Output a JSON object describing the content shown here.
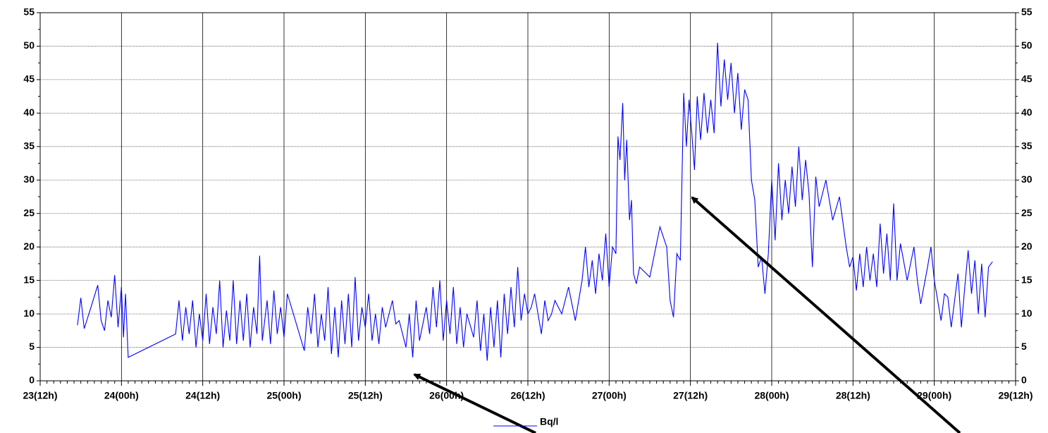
{
  "chart_data": {
    "type": "line",
    "x": [
      5.5,
      6,
      6.5,
      7.5,
      8.5,
      9,
      9.5,
      10,
      10.5,
      11,
      11.5,
      12,
      12.3,
      12.6,
      13,
      20,
      20.5,
      21,
      21.5,
      22,
      22.5,
      23,
      23.5,
      24,
      24.5,
      25,
      25.5,
      26,
      26.5,
      27,
      27.5,
      28,
      28.5,
      29,
      29.5,
      30,
      30.5,
      31,
      31.5,
      32,
      32.4,
      32.8,
      33.5,
      34,
      34.5,
      35,
      35.5,
      36,
      36.5,
      39,
      39.5,
      40,
      40.5,
      41,
      41.5,
      42,
      42.5,
      43,
      43.5,
      44,
      44.5,
      45,
      45.5,
      46,
      46.5,
      47,
      47.5,
      48,
      48.5,
      49,
      49.5,
      50,
      50.5,
      51,
      52,
      52.5,
      53,
      54,
      54.5,
      55,
      55.5,
      56,
      57,
      57.5,
      58,
      58.5,
      59,
      59.5,
      60,
      60.5,
      61,
      61.5,
      62,
      62.5,
      63,
      64,
      64.5,
      65,
      65.5,
      66,
      66.5,
      67,
      67.5,
      68,
      68.5,
      69,
      69.5,
      70,
      70.5,
      71,
      71.5,
      72,
      72.5,
      73,
      74,
      74.5,
      75,
      75.5,
      76,
      77,
      78,
      79,
      79.5,
      80,
      80.5,
      81,
      81.5,
      82,
      82.5,
      83,
      83.5,
      84,
      84.5,
      85,
      85.3,
      85.6,
      86,
      86.3,
      86.6,
      87,
      87.3,
      87.6,
      88,
      88.5,
      90,
      91.5,
      92.5,
      93,
      93.5,
      94,
      94.5,
      95,
      95.4,
      95.8,
      96.2,
      96.6,
      97,
      97.5,
      98,
      98.5,
      99,
      99.5,
      100,
      100.5,
      101,
      101.5,
      102,
      102.5,
      103,
      103.5,
      104,
      104.5,
      105,
      105.5,
      106,
      106.5,
      107,
      107.5,
      108,
      108.5,
      109,
      109.5,
      110,
      110.5,
      111,
      111.5,
      112,
      112.5,
      113,
      113.5,
      114,
      114.5,
      115,
      116,
      117,
      118,
      119,
      119.5,
      120,
      120.5,
      121,
      121.5,
      122,
      122.5,
      123,
      123.5,
      124,
      124.5,
      125,
      125.5,
      126,
      126.5,
      127,
      128,
      129,
      129.5,
      130,
      131,
      131.5,
      132,
      132.5,
      133,
      133.5,
      134,
      134.5,
      135,
      135.5,
      136,
      136.5,
      137,
      137.5,
      138,
      138.5,
      139,
      139.5,
      140,
      140.6
    ],
    "series": [
      {
        "name": "Bq/l",
        "color": "#0000ff",
        "values": [
          8.3,
          12.4,
          7.8,
          11,
          14.3,
          9,
          7.5,
          12,
          9.5,
          15.8,
          8,
          14,
          6.5,
          13,
          3.5,
          7,
          12,
          6,
          11,
          7,
          12,
          5,
          10,
          6,
          13,
          5.5,
          11,
          7,
          15,
          5,
          10.5,
          6,
          15,
          5.5,
          12,
          6,
          13,
          5,
          11,
          7,
          18.7,
          6,
          12,
          5.5,
          13.5,
          7,
          11,
          6.5,
          13,
          4.5,
          11,
          7,
          13,
          5,
          10,
          6,
          14,
          4,
          11,
          3.5,
          12,
          5.5,
          13,
          5,
          15.5,
          6,
          11,
          8,
          13,
          6,
          10,
          5.5,
          11,
          8,
          12,
          8.5,
          9,
          5,
          10,
          3.5,
          12,
          6,
          11,
          7,
          14,
          8,
          15,
          6,
          12,
          7,
          14,
          5.5,
          11,
          5,
          10,
          6.5,
          12,
          4.5,
          10,
          3,
          11,
          5,
          12,
          3.5,
          13,
          7,
          14,
          8,
          17,
          9,
          13,
          10,
          11,
          13,
          7,
          12,
          9,
          10,
          12,
          10,
          14,
          9,
          12,
          15,
          20,
          14,
          18,
          13,
          19,
          15,
          22,
          14,
          20,
          19,
          36.5,
          33,
          41.5,
          30,
          36,
          24,
          27,
          16,
          14.5,
          17,
          15.5,
          23,
          20,
          12,
          9.5,
          19,
          18,
          43,
          35,
          42,
          37,
          31.5,
          42.5,
          36,
          43,
          37,
          42,
          37,
          50.5,
          41,
          48,
          42,
          47.5,
          40,
          46,
          37.5,
          43.5,
          42,
          30,
          27,
          17,
          18.5,
          13,
          19,
          30,
          21,
          32.5,
          24,
          30,
          25,
          32,
          26,
          35,
          27,
          33,
          28,
          17,
          30.5,
          26,
          30,
          24,
          27.5,
          20,
          17,
          18.5,
          13.5,
          19,
          14,
          20,
          15,
          19,
          14,
          23.5,
          16,
          22,
          15,
          26.5,
          15,
          20.5,
          15,
          20,
          15,
          11.5,
          17,
          20,
          15,
          12,
          9,
          13,
          12.5,
          8,
          12,
          16,
          8,
          14,
          19.5,
          13,
          18,
          10,
          17.5,
          9.5,
          17,
          17.8
        ]
      }
    ],
    "xlim": [
      0,
      144
    ],
    "xticks": [
      {
        "value": 0,
        "label": "23(12h)"
      },
      {
        "value": 12,
        "label": "24(00h)"
      },
      {
        "value": 24,
        "label": "24(12h)"
      },
      {
        "value": 36,
        "label": "25(00h)"
      },
      {
        "value": 48,
        "label": "25(12h)"
      },
      {
        "value": 60,
        "label": "26(00h)"
      },
      {
        "value": 72,
        "label": "26(12h)"
      },
      {
        "value": 84,
        "label": "27(00h)"
      },
      {
        "value": 96,
        "label": "27(12h)"
      },
      {
        "value": 108,
        "label": "28(00h)"
      },
      {
        "value": 120,
        "label": "28(12h)"
      },
      {
        "value": 132,
        "label": "29(00h)"
      },
      {
        "value": 144,
        "label": "29(12h)"
      }
    ],
    "ylim": [
      0,
      55
    ],
    "yticks": [
      0,
      5,
      10,
      15,
      20,
      25,
      30,
      35,
      40,
      45,
      50,
      55
    ],
    "grid": true
  }
}
